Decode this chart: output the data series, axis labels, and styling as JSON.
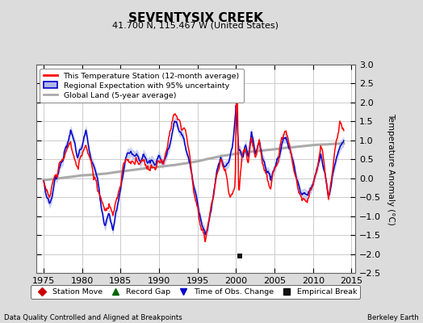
{
  "title": "SEVENTYSIX CREEK",
  "subtitle": "41.700 N, 115.467 W (United States)",
  "ylabel": "Temperature Anomaly (°C)",
  "xlabel_left": "Data Quality Controlled and Aligned at Breakpoints",
  "xlabel_right": "Berkeley Earth",
  "ylim": [
    -2.5,
    3.0
  ],
  "xlim": [
    1974.0,
    2015.5
  ],
  "xticks": [
    1975,
    1980,
    1985,
    1990,
    1995,
    2000,
    2005,
    2010,
    2015
  ],
  "yticks": [
    -2.5,
    -2,
    -1.5,
    -1,
    -0.5,
    0,
    0.5,
    1,
    1.5,
    2,
    2.5,
    3
  ],
  "bg_color": "#dcdcdc",
  "plot_bg_color": "#ffffff",
  "grid_color": "#cccccc",
  "red_color": "#ff0000",
  "blue_color": "#0000cc",
  "blue_fill_color": "#b0b8e8",
  "gray_color": "#aaaaaa",
  "empirical_break_x": 2000.5,
  "empirical_break_y": -2.05,
  "legend_entries": [
    "This Temperature Station (12-month average)",
    "Regional Expectation with 95% uncertainty",
    "Global Land (5-year average)"
  ],
  "bottom_legend": [
    {
      "marker": "D",
      "color": "#cc0000",
      "label": "Station Move"
    },
    {
      "marker": "^",
      "color": "#006600",
      "label": "Record Gap"
    },
    {
      "marker": "v",
      "color": "#0000cc",
      "label": "Time of Obs. Change"
    },
    {
      "marker": "s",
      "color": "#111111",
      "label": "Empirical Break"
    }
  ]
}
